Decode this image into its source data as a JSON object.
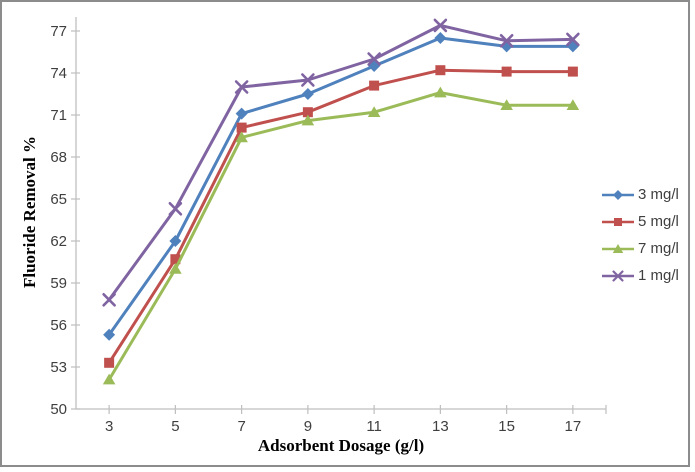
{
  "chart_data": {
    "type": "line",
    "title": "",
    "xlabel": "Adsorbent Dosage (g/l)",
    "ylabel": "Fluoride Removal %",
    "x": [
      3,
      5,
      7,
      9,
      11,
      13,
      15,
      17
    ],
    "xticklabels": [
      "3",
      "5",
      "7",
      "9",
      "11",
      "13",
      "15",
      "17"
    ],
    "yticks": [
      50,
      53,
      56,
      59,
      62,
      65,
      68,
      71,
      74,
      77
    ],
    "ylim": [
      50,
      78
    ],
    "grid": false,
    "legend_position": "right-outside",
    "series": [
      {
        "name": "3 mg/l",
        "marker": "diamond",
        "color": "#4F81BD",
        "values": [
          55.3,
          62.0,
          71.1,
          72.5,
          74.5,
          76.5,
          75.9,
          75.9
        ]
      },
      {
        "name": "5 mg/l",
        "marker": "square",
        "color": "#C0504D",
        "values": [
          53.3,
          60.7,
          70.1,
          71.2,
          73.1,
          74.2,
          74.1,
          74.1
        ]
      },
      {
        "name": "7 mg/l",
        "marker": "triangle",
        "color": "#9BBB59",
        "values": [
          52.1,
          60.0,
          69.4,
          70.6,
          71.2,
          72.6,
          71.7,
          71.7
        ]
      },
      {
        "name": "1 mg/l",
        "marker": "x",
        "color": "#8064A2",
        "values": [
          57.8,
          64.3,
          73.0,
          73.5,
          75.0,
          77.4,
          76.3,
          76.4
        ]
      }
    ],
    "colors": {
      "axis": "#BFBFBF",
      "tick_label": "#3F3F3F",
      "axis_title": "#000000",
      "frame_border": "#8C8C8C"
    }
  }
}
